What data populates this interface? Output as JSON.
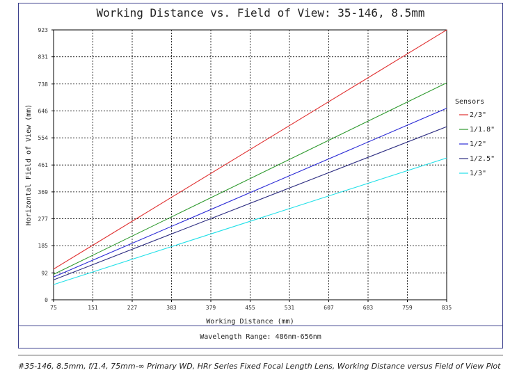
{
  "chart_data": {
    "type": "line",
    "title": "Working Distance vs. Field of View: 35-146, 8.5mm",
    "xlabel": "Working Distance (mm)",
    "ylabel": "Horizontal Field of View (mm)",
    "xlim": [
      75,
      835
    ],
    "ylim": [
      0,
      923
    ],
    "x_ticks": [
      75,
      151,
      227,
      303,
      379,
      455,
      531,
      607,
      683,
      759,
      835
    ],
    "y_ticks": [
      0,
      92,
      185,
      277,
      369,
      461,
      554,
      646,
      738,
      831,
      923
    ],
    "grid": true,
    "legend_title": "Sensors",
    "legend_position": "right",
    "series": [
      {
        "name": "2/3\"",
        "color": "#e03131",
        "x": [
          75,
          835
        ],
        "y": [
          105,
          923
        ]
      },
      {
        "name": "1/1.8\"",
        "color": "#2f9a2f",
        "x": [
          75,
          835
        ],
        "y": [
          87,
          742
        ]
      },
      {
        "name": "1/2\"",
        "color": "#2b2bd6",
        "x": [
          75,
          835
        ],
        "y": [
          78,
          655
        ]
      },
      {
        "name": "1/2.5\"",
        "color": "#2e2e82",
        "x": [
          75,
          835
        ],
        "y": [
          68,
          592
        ]
      },
      {
        "name": "1/3\"",
        "color": "#22e0e8",
        "x": [
          75,
          835
        ],
        "y": [
          52,
          485
        ]
      }
    ]
  },
  "footer": {
    "wavelength": "Wavelength Range: 486nm-656nm"
  },
  "caption": "#35-146, 8.5mm, f/1.4, 75mm-∞ Primary WD, HRr Series Fixed Focal Length Lens, Working Distance versus Field of View Plot"
}
